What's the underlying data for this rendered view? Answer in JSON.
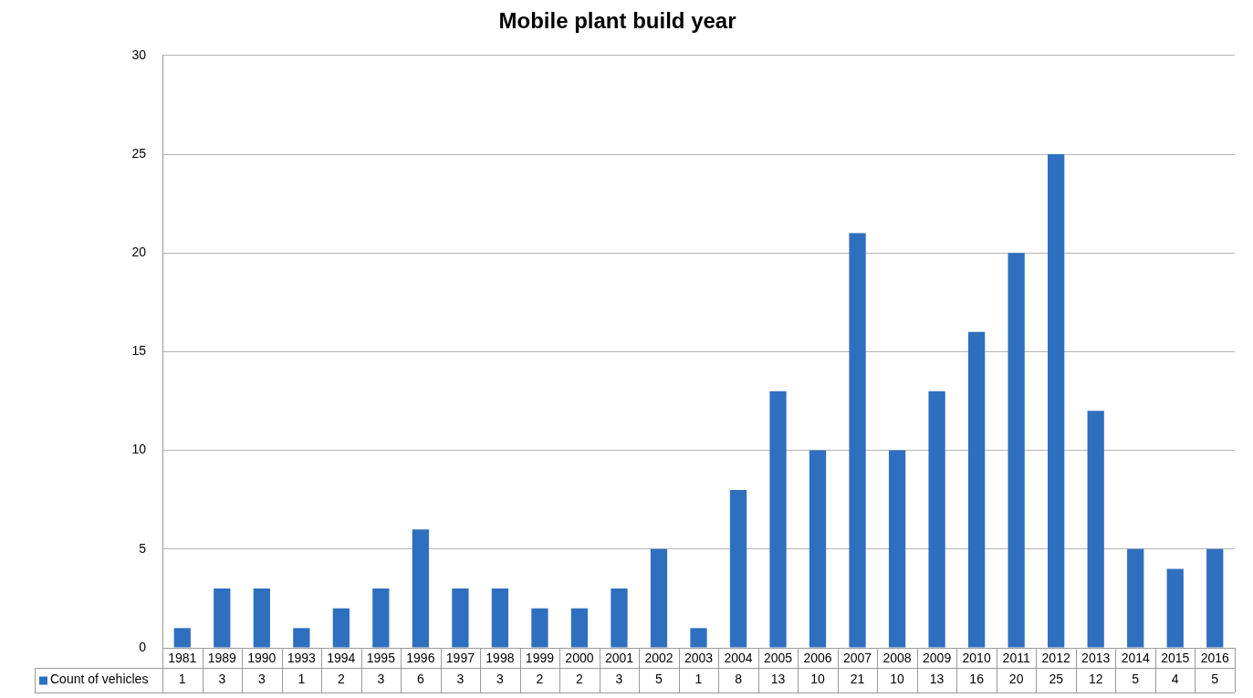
{
  "chart_data": {
    "type": "bar",
    "title": "Mobile plant build year",
    "categories": [
      "1981",
      "1989",
      "1990",
      "1993",
      "1994",
      "1995",
      "1996",
      "1997",
      "1998",
      "1999",
      "2000",
      "2001",
      "2002",
      "2003",
      "2004",
      "2005",
      "2006",
      "2007",
      "2008",
      "2009",
      "2010",
      "2011",
      "2012",
      "2013",
      "2014",
      "2015",
      "2016"
    ],
    "series": [
      {
        "name": "Count of vehicles",
        "color": "#2f6fbf",
        "values": [
          1,
          3,
          3,
          1,
          2,
          3,
          6,
          3,
          3,
          2,
          2,
          3,
          5,
          1,
          8,
          13,
          10,
          21,
          10,
          13,
          16,
          20,
          25,
          12,
          5,
          4,
          5
        ]
      }
    ],
    "ylim": [
      0,
      30
    ],
    "yticks": [
      0,
      5,
      10,
      15,
      20,
      25,
      30
    ],
    "grid": "y",
    "legend": "bottom",
    "data_labels": true
  }
}
